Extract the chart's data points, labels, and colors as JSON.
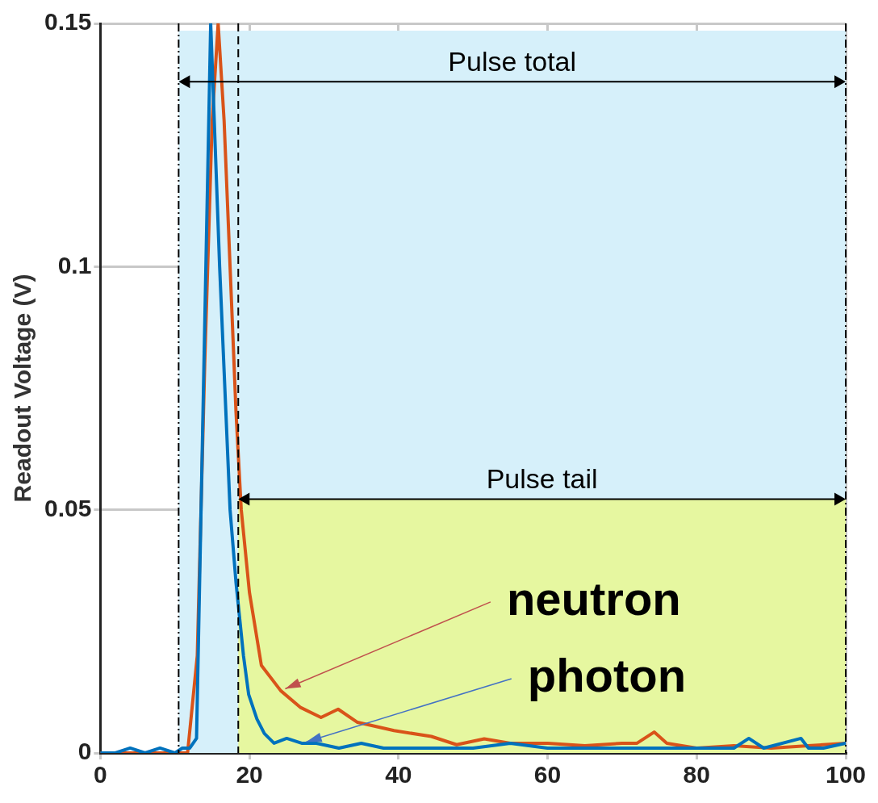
{
  "chart_data": {
    "type": "line",
    "ylabel": "Readout Voltage (V)",
    "xlim": [
      0,
      100
    ],
    "xticks": [
      0,
      20,
      40,
      60,
      80,
      100
    ],
    "ylim": [
      0,
      0.15
    ],
    "yticks": [
      0,
      0.05,
      0.1,
      0.15
    ],
    "grid": true,
    "marker": "none",
    "line_style": "solid",
    "series": [
      {
        "color": "#0072bd",
        "x": [
          0,
          2,
          4,
          6,
          8,
          10,
          11,
          12,
          12.9,
          14.8,
          16,
          17.4,
          18.2,
          19.2,
          19.9,
          21,
          22,
          23.3,
          25,
          27,
          29,
          32,
          35,
          38,
          41,
          45,
          50,
          55,
          60,
          65,
          70,
          75,
          80,
          85,
          87,
          89,
          94,
          95,
          97,
          100
        ],
        "values": [
          0,
          0,
          0.001,
          0,
          0.001,
          0,
          0.001,
          0.001,
          0.003,
          0.15,
          0.1,
          0.05,
          0.035,
          0.02,
          0.012,
          0.007,
          0.004,
          0.002,
          0.003,
          0.002,
          0.002,
          0.001,
          0.002,
          0.001,
          0.001,
          0.001,
          0.001,
          0.002,
          0.001,
          0.001,
          0.001,
          0.001,
          0.001,
          0.001,
          0.003,
          0.001,
          0.003,
          0.001,
          0.001,
          0.002
        ]
      },
      {
        "color": "#d95319",
        "x": [
          0,
          5,
          10,
          11.7,
          13,
          14,
          15,
          15.8,
          16.6,
          17.4,
          18.2,
          18.9,
          20,
          21.6,
          24.2,
          26.8,
          29.6,
          31.9,
          34.5,
          39.4,
          44.4,
          47.8,
          51.5,
          55,
          60,
          65,
          70,
          72,
          74.3,
          76,
          80,
          85,
          90,
          95,
          100
        ],
        "values": [
          0,
          0,
          0,
          0,
          0.02,
          0.08,
          0.13,
          0.15,
          0.13,
          0.1,
          0.07,
          0.05,
          0.033,
          0.018,
          0.0128,
          0.0094,
          0.0073,
          0.009,
          0.0063,
          0.0046,
          0.0034,
          0.0017,
          0.0029,
          0.002,
          0.002,
          0.0015,
          0.002,
          0.002,
          0.0043,
          0.002,
          0.001,
          0.0015,
          0.001,
          0.0015,
          0.002
        ]
      }
    ],
    "bands": [
      {
        "axis": "x",
        "from": 10.5,
        "to": 100,
        "label": "Pulse total",
        "color": "#d6f0fa"
      },
      {
        "axis": "x",
        "from": 18.5,
        "to": 100,
        "label": "Pulse tail",
        "color": "#e6f7a0"
      }
    ],
    "ref_lines": [
      {
        "axis": "x",
        "value": 10.5,
        "line_style": "dashdot"
      },
      {
        "axis": "x",
        "value": 18.5,
        "line_style": "dashed"
      },
      {
        "axis": "x",
        "value": 100,
        "line_style": "dashdot"
      }
    ],
    "annotations": [
      {
        "text": "neutron",
        "x": 24.2,
        "y": 0.0128
      },
      {
        "text": "photon",
        "x": 27,
        "y": 0.002
      }
    ]
  }
}
